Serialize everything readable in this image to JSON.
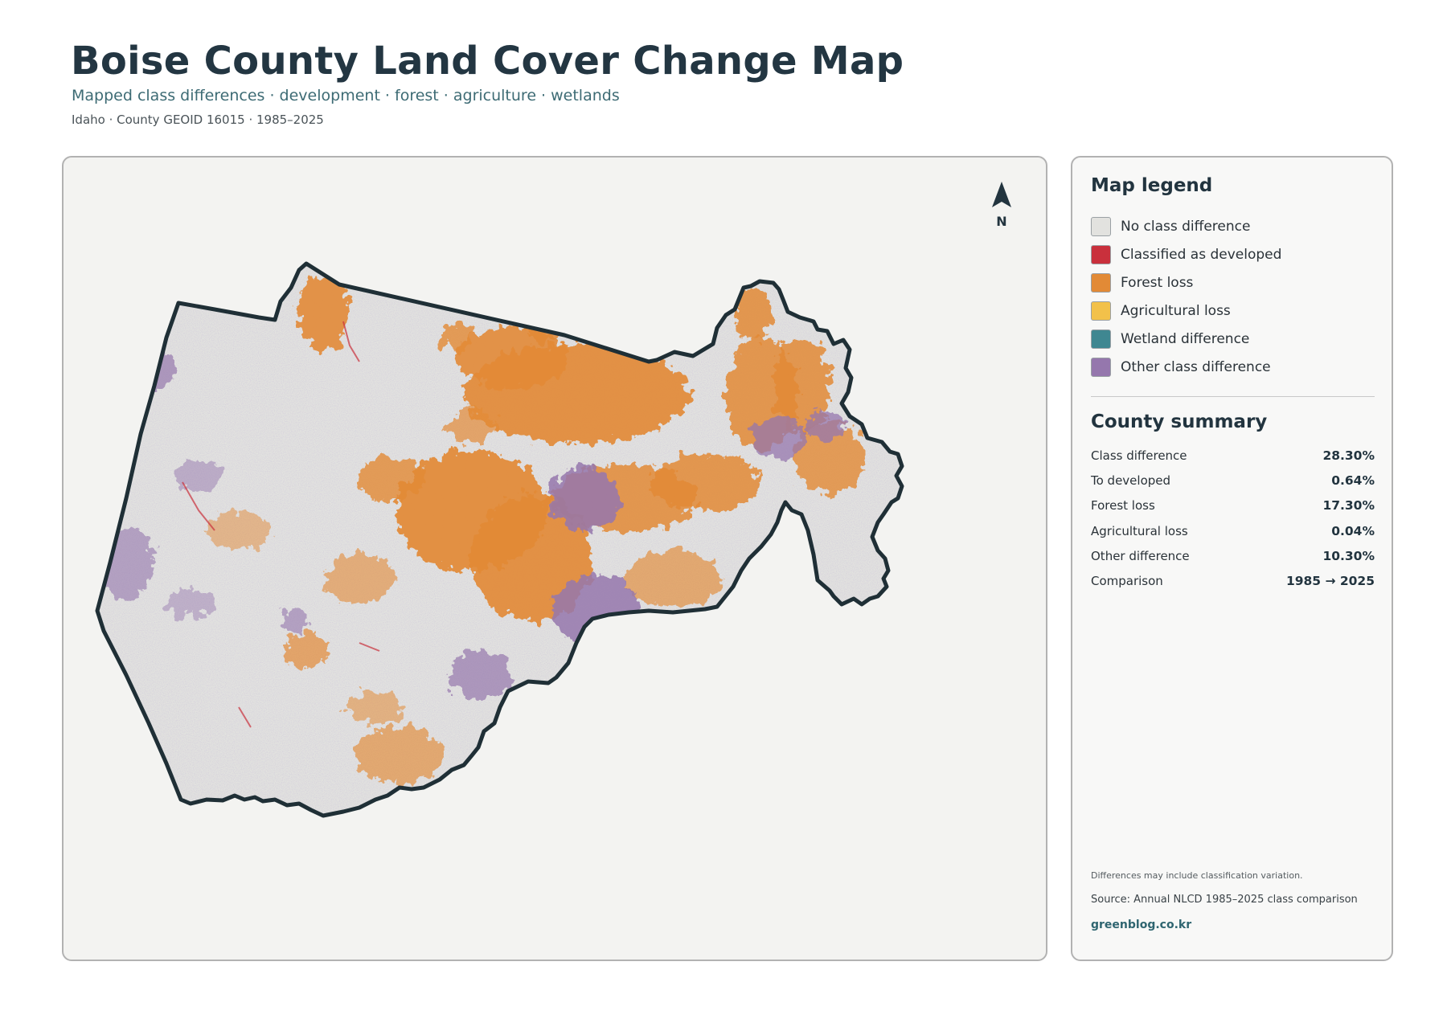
{
  "header": {
    "title": "Boise County Land Cover Change Map",
    "subtitle": "Mapped class differences · development · forest · agriculture · wetlands",
    "meta": "Idaho · County GEOID 16015 · 1985–2025"
  },
  "map": {
    "north_label": "N",
    "colors": {
      "background": "#f3f3f1",
      "county_fill": "#e2e2df",
      "boundary": "#1f2f36",
      "forest_loss": "#e28a36",
      "other_difference": "#9577ad",
      "developed": "#c9303c"
    }
  },
  "legend": {
    "title": "Map legend",
    "items": [
      {
        "label": "No class difference",
        "color": "#e2e2df"
      },
      {
        "label": "Classified as developed",
        "color": "#c9303c"
      },
      {
        "label": "Forest loss",
        "color": "#e28a36"
      },
      {
        "label": "Agricultural loss",
        "color": "#f2c14a"
      },
      {
        "label": "Wetland difference",
        "color": "#3f8791"
      },
      {
        "label": "Other class difference",
        "color": "#9577ad"
      }
    ]
  },
  "summary": {
    "title": "County summary",
    "rows": [
      {
        "key": "Class difference",
        "value": "28.30%"
      },
      {
        "key": "To developed",
        "value": "0.64%"
      },
      {
        "key": "Forest loss",
        "value": "17.30%"
      },
      {
        "key": "Agricultural loss",
        "value": "0.04%"
      },
      {
        "key": "Other difference",
        "value": "10.30%"
      },
      {
        "key": "Comparison",
        "value": "1985 → 2025"
      }
    ]
  },
  "footer": {
    "note": "Differences may include classification variation.",
    "source": "Source: Annual NLCD 1985–2025 class comparison",
    "site": "greenblog.co.kr"
  }
}
